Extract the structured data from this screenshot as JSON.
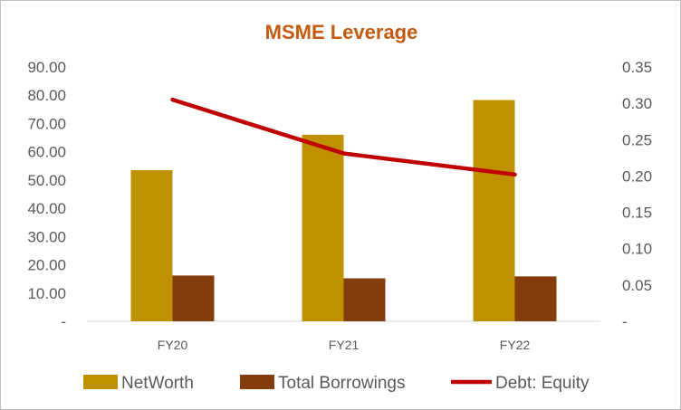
{
  "chart_data": {
    "type": "bar",
    "title": "MSME Leverage",
    "categories": [
      "FY20",
      "FY21",
      "FY22"
    ],
    "series": [
      {
        "name": "NetWorth",
        "type": "bar",
        "axis": "left",
        "color": "#bf9000",
        "values": [
          53.5,
          66.0,
          78.3
        ]
      },
      {
        "name": "Total Borrowings",
        "type": "bar",
        "axis": "left",
        "color": "#843c0c",
        "values": [
          16.2,
          15.2,
          15.9
        ]
      },
      {
        "name": "Debt: Equity",
        "type": "line",
        "axis": "right",
        "color": "#c00000",
        "values": [
          0.305,
          0.231,
          0.202
        ]
      }
    ],
    "y_left": {
      "min": 0,
      "max": 90,
      "step": 10,
      "tick_labels": [
        "-",
        "10.00",
        "20.00",
        "30.00",
        "40.00",
        "50.00",
        "60.00",
        "70.00",
        "80.00",
        "90.00"
      ]
    },
    "y_right": {
      "min": 0,
      "max": 0.35,
      "step": 0.05,
      "tick_labels": [
        "-",
        "0.05",
        "0.10",
        "0.15",
        "0.20",
        "0.25",
        "0.30",
        "0.35"
      ]
    },
    "legend_position": "bottom",
    "grid": false,
    "title_color": "#c55a11",
    "axis_color": "#d9d9d9"
  }
}
